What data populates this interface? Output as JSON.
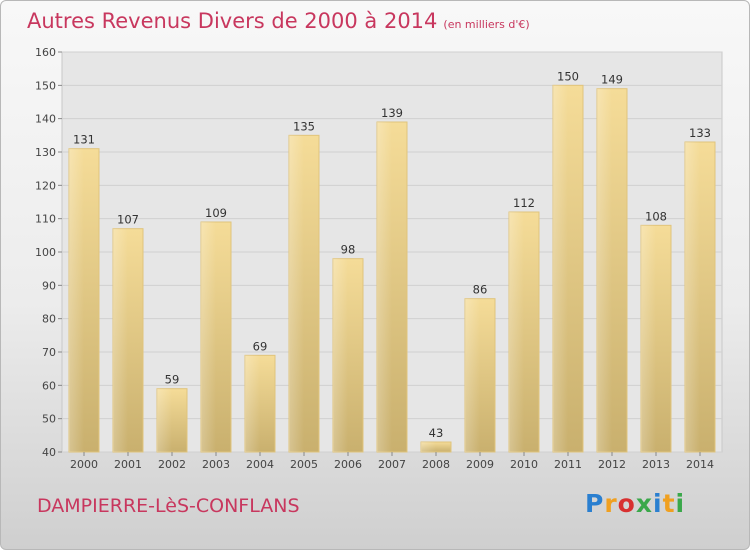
{
  "chart_data": {
    "type": "bar",
    "title": "Autres Revenus Divers de 2000 à 2014",
    "subtitle": "(en milliers d'€)",
    "xlabel": "",
    "ylabel": "",
    "ylim": [
      40,
      160
    ],
    "yticks": [
      40,
      50,
      60,
      70,
      80,
      90,
      100,
      110,
      120,
      130,
      140,
      150,
      160
    ],
    "categories": [
      "2000",
      "2001",
      "2002",
      "2003",
      "2004",
      "2005",
      "2006",
      "2007",
      "2008",
      "2009",
      "2010",
      "2011",
      "2012",
      "2013",
      "2014"
    ],
    "values": [
      131,
      107,
      59,
      109,
      69,
      135,
      98,
      139,
      43,
      86,
      112,
      150,
      149,
      108,
      133
    ],
    "grid": true,
    "bar_color": "#e8d08c"
  },
  "footer": {
    "town": "DAMPIERRE-LèS-CONFLANS",
    "logo_letters": [
      "P",
      "r",
      "o",
      "x",
      "i",
      "t",
      "i"
    ],
    "logo_colors": [
      "#2a7fd0",
      "#f0a020",
      "#d83030",
      "#3aa84a",
      "#2a7fd0",
      "#f0a020",
      "#3aa84a"
    ]
  }
}
